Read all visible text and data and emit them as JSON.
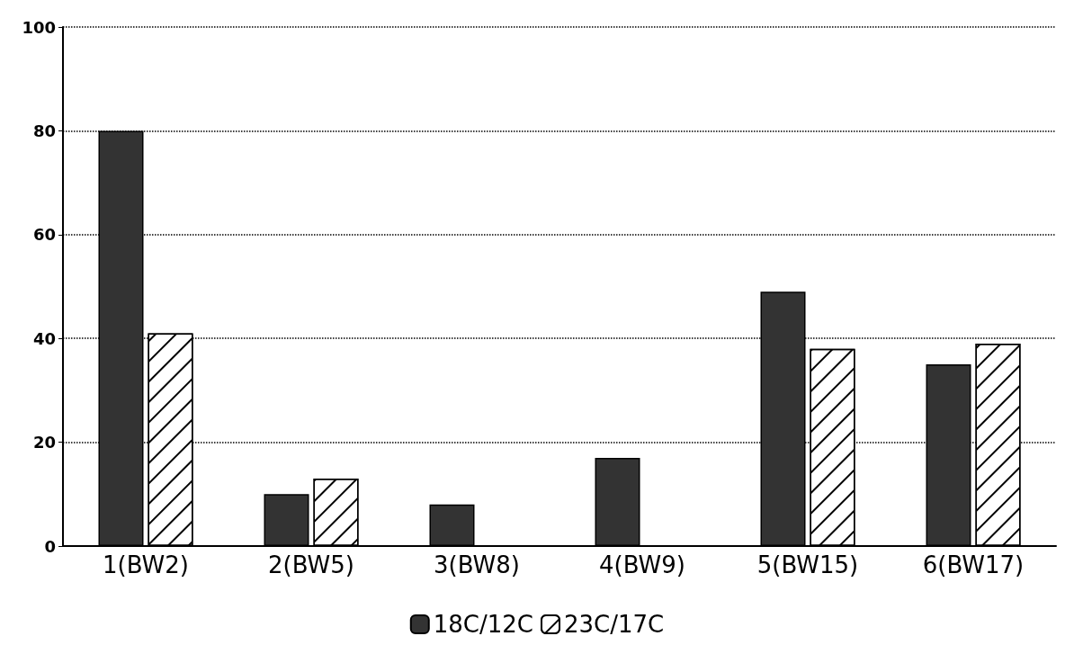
{
  "chart_data": {
    "type": "bar",
    "categories": [
      "1(BW2)",
      "2(BW5)",
      "3(BW8)",
      "4(BW9)",
      "5(BW15)",
      "6(BW17)"
    ],
    "series": [
      {
        "name": "18C/12C",
        "color": "#333333",
        "values": [
          80,
          10,
          8,
          17,
          49,
          35
        ]
      },
      {
        "name": "23C/17C",
        "color": "#ffffff",
        "values": [
          41,
          13,
          null,
          null,
          38,
          39
        ]
      }
    ],
    "ylim": [
      0,
      100
    ],
    "yticks": [
      0,
      20,
      40,
      60,
      80,
      100
    ],
    "grid": "y",
    "legend": "bottom"
  }
}
